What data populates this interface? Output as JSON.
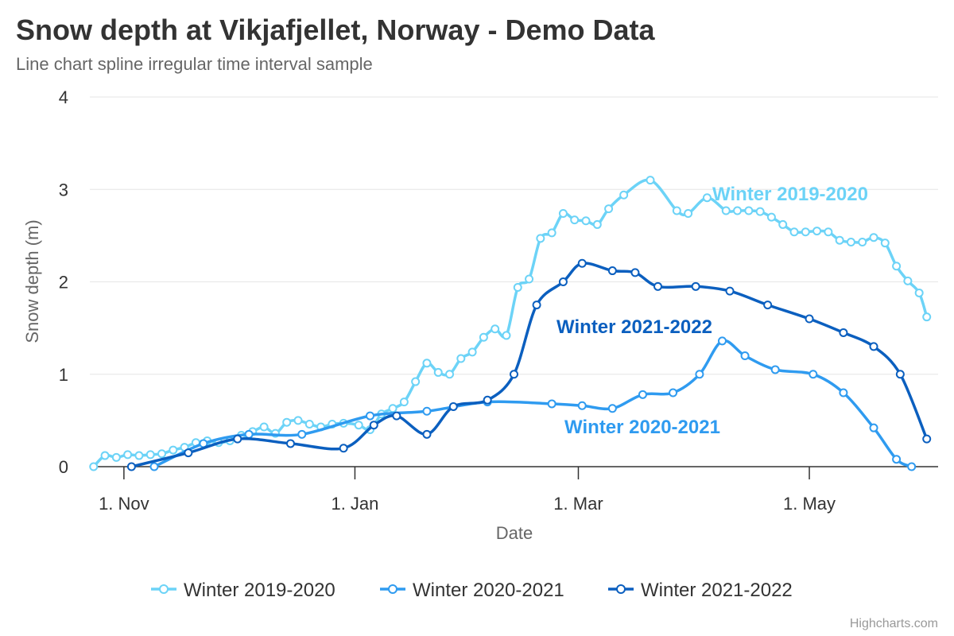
{
  "chart_data": {
    "type": "line",
    "title": "Snow depth at Vikjafjellet, Norway - Demo Data",
    "subtitle": "Line chart spline irregular time interval sample",
    "xlabel": "Date",
    "ylabel": "Snow depth (m)",
    "ylim": [
      0,
      4
    ],
    "yticks": [
      "0",
      "1",
      "2",
      "3",
      "4"
    ],
    "xlim": [
      "1970-10-23",
      "1971-06-04"
    ],
    "xticks": [
      {
        "date": "1970-11-01",
        "label": "1. Nov"
      },
      {
        "date": "1971-01-01",
        "label": "1. Jan"
      },
      {
        "date": "1971-03-01",
        "label": "1. Mar"
      },
      {
        "date": "1971-05-01",
        "label": "1. May"
      }
    ],
    "grid": true,
    "legend_position": "bottom-center",
    "credits": "Highcharts.com",
    "series": [
      {
        "name": "Winter 2019-2020",
        "color": "#6cd3f7",
        "label": "Winter 2019-2020",
        "points": [
          [
            "1970-10-24",
            0.0
          ],
          [
            "1970-10-27",
            0.12
          ],
          [
            "1970-10-30",
            0.1
          ],
          [
            "1970-11-02",
            0.13
          ],
          [
            "1970-11-05",
            0.12
          ],
          [
            "1970-11-08",
            0.13
          ],
          [
            "1970-11-11",
            0.14
          ],
          [
            "1970-11-14",
            0.18
          ],
          [
            "1970-11-17",
            0.21
          ],
          [
            "1970-11-20",
            0.26
          ],
          [
            "1970-11-23",
            0.28
          ],
          [
            "1970-11-26",
            0.26
          ],
          [
            "1970-11-29",
            0.28
          ],
          [
            "1970-12-02",
            0.34
          ],
          [
            "1970-12-05",
            0.38
          ],
          [
            "1970-12-08",
            0.43
          ],
          [
            "1970-12-11",
            0.36
          ],
          [
            "1970-12-14",
            0.48
          ],
          [
            "1970-12-17",
            0.5
          ],
          [
            "1970-12-20",
            0.46
          ],
          [
            "1970-12-23",
            0.43
          ],
          [
            "1970-12-26",
            0.46
          ],
          [
            "1970-12-29",
            0.47
          ],
          [
            "1971-01-02",
            0.45
          ],
          [
            "1971-01-05",
            0.4
          ],
          [
            "1971-01-08",
            0.57
          ],
          [
            "1971-01-11",
            0.63
          ],
          [
            "1971-01-14",
            0.7
          ],
          [
            "1971-01-17",
            0.92
          ],
          [
            "1971-01-20",
            1.12
          ],
          [
            "1971-01-23",
            1.02
          ],
          [
            "1971-01-26",
            1.0
          ],
          [
            "1971-01-29",
            1.17
          ],
          [
            "1971-02-01",
            1.24
          ],
          [
            "1971-02-04",
            1.4
          ],
          [
            "1971-02-07",
            1.49
          ],
          [
            "1971-02-10",
            1.42
          ],
          [
            "1971-02-13",
            1.94
          ],
          [
            "1971-02-16",
            2.03
          ],
          [
            "1971-02-19",
            2.47
          ],
          [
            "1971-02-22",
            2.53
          ],
          [
            "1971-02-25",
            2.74
          ],
          [
            "1971-02-28",
            2.67
          ],
          [
            "1971-03-03",
            2.66
          ],
          [
            "1971-03-06",
            2.62
          ],
          [
            "1971-03-09",
            2.79
          ],
          [
            "1971-03-13",
            2.94
          ],
          [
            "1971-03-20",
            3.1
          ],
          [
            "1971-03-27",
            2.77
          ],
          [
            "1971-03-30",
            2.74
          ],
          [
            "1971-04-04",
            2.91
          ],
          [
            "1971-04-09",
            2.77
          ],
          [
            "1971-04-12",
            2.77
          ],
          [
            "1971-04-15",
            2.77
          ],
          [
            "1971-04-18",
            2.76
          ],
          [
            "1971-04-21",
            2.7
          ],
          [
            "1971-04-24",
            2.62
          ],
          [
            "1971-04-27",
            2.54
          ],
          [
            "1971-04-30",
            2.54
          ],
          [
            "1971-05-03",
            2.55
          ],
          [
            "1971-05-06",
            2.54
          ],
          [
            "1971-05-09",
            2.45
          ],
          [
            "1971-05-12",
            2.43
          ],
          [
            "1971-05-15",
            2.43
          ],
          [
            "1971-05-18",
            2.48
          ],
          [
            "1971-05-21",
            2.42
          ],
          [
            "1971-05-24",
            2.17
          ],
          [
            "1971-05-27",
            2.01
          ],
          [
            "1971-05-30",
            1.88
          ],
          [
            "1971-06-01",
            1.62
          ]
        ]
      },
      {
        "name": "Winter 2020-2021",
        "color": "#2f9bf0",
        "label": "Winter 2020-2021",
        "points": [
          [
            "1970-11-09",
            0.0
          ],
          [
            "1970-11-22",
            0.25
          ],
          [
            "1970-12-04",
            0.35
          ],
          [
            "1970-12-18",
            0.35
          ],
          [
            "1971-01-05",
            0.55
          ],
          [
            "1971-01-20",
            0.6
          ],
          [
            "1971-02-05",
            0.7
          ],
          [
            "1971-02-22",
            0.68
          ],
          [
            "1971-03-02",
            0.66
          ],
          [
            "1971-03-10",
            0.63
          ],
          [
            "1971-03-18",
            0.78
          ],
          [
            "1971-03-26",
            0.8
          ],
          [
            "1971-04-02",
            1.0
          ],
          [
            "1971-04-08",
            1.36
          ],
          [
            "1971-04-14",
            1.2
          ],
          [
            "1971-04-22",
            1.05
          ],
          [
            "1971-05-02",
            1.0
          ],
          [
            "1971-05-10",
            0.8
          ],
          [
            "1971-05-18",
            0.42
          ],
          [
            "1971-05-24",
            0.08
          ],
          [
            "1971-05-28",
            0.0
          ]
        ]
      },
      {
        "name": "Winter 2021-2022",
        "color": "#0b5fbf",
        "label": "Winter 2021-2022",
        "points": [
          [
            "1970-11-03",
            0.0
          ],
          [
            "1970-11-18",
            0.15
          ],
          [
            "1970-12-01",
            0.3
          ],
          [
            "1970-12-15",
            0.25
          ],
          [
            "1970-12-29",
            0.2
          ],
          [
            "1971-01-06",
            0.45
          ],
          [
            "1971-01-12",
            0.55
          ],
          [
            "1971-01-20",
            0.35
          ],
          [
            "1971-01-27",
            0.65
          ],
          [
            "1971-02-05",
            0.72
          ],
          [
            "1971-02-12",
            1.0
          ],
          [
            "1971-02-18",
            1.75
          ],
          [
            "1971-02-25",
            2.0
          ],
          [
            "1971-03-02",
            2.2
          ],
          [
            "1971-03-10",
            2.12
          ],
          [
            "1971-03-16",
            2.1
          ],
          [
            "1971-03-22",
            1.95
          ],
          [
            "1971-04-01",
            1.95
          ],
          [
            "1971-04-10",
            1.9
          ],
          [
            "1971-04-20",
            1.75
          ],
          [
            "1971-05-01",
            1.6
          ],
          [
            "1971-05-10",
            1.45
          ],
          [
            "1971-05-18",
            1.3
          ],
          [
            "1971-05-25",
            1.0
          ],
          [
            "1971-06-01",
            0.3
          ]
        ]
      }
    ]
  }
}
